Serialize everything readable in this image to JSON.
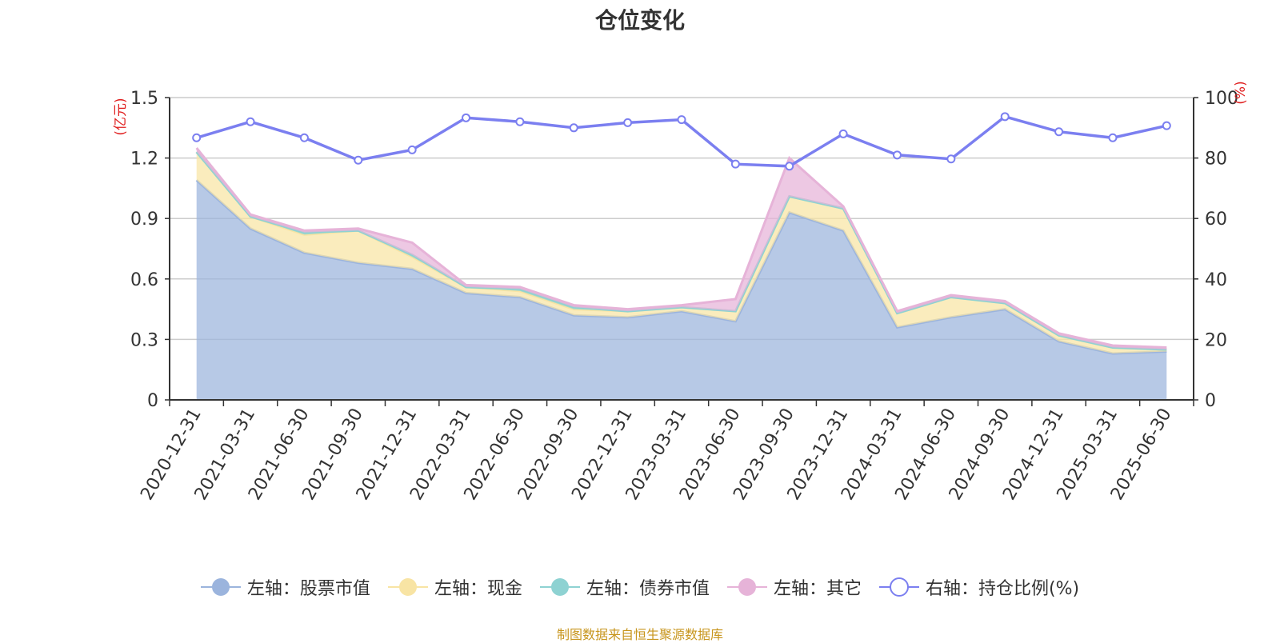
{
  "chart_data": {
    "type": "area",
    "title": "仓位变化",
    "categories": [
      "2020-12-31",
      "2021-03-31",
      "2021-06-30",
      "2021-09-30",
      "2021-12-31",
      "2022-03-31",
      "2022-06-30",
      "2022-09-30",
      "2022-12-31",
      "2023-03-31",
      "2023-06-30",
      "2023-09-30",
      "2023-12-31",
      "2024-03-31",
      "2024-06-30",
      "2024-09-30",
      "2024-12-31",
      "2025-03-31",
      "2025-06-30"
    ],
    "y_left": {
      "label": "(亿元)",
      "ylim": [
        0,
        1.5
      ],
      "ticks": [
        "0",
        "0.3",
        "0.6",
        "0.9",
        "1.2",
        "1.5"
      ],
      "tick_values": [
        0,
        0.3,
        0.6,
        0.9,
        1.2,
        1.5
      ]
    },
    "y_right": {
      "label": "(%)",
      "ylim": [
        0,
        100
      ],
      "ticks": [
        "0",
        "20",
        "40",
        "60",
        "80",
        "100"
      ],
      "tick_values": [
        0,
        20,
        40,
        60,
        80,
        100
      ]
    },
    "grid": true,
    "legend_position": "bottom",
    "stacked": true,
    "series": [
      {
        "name": "左轴：股票市值",
        "axis": "left",
        "kind": "area",
        "color": "#9bb4dd",
        "values": [
          1.09,
          0.85,
          0.73,
          0.68,
          0.65,
          0.53,
          0.51,
          0.42,
          0.41,
          0.44,
          0.39,
          0.93,
          0.84,
          0.36,
          0.41,
          0.45,
          0.29,
          0.23,
          0.24
        ]
      },
      {
        "name": "左轴：现金",
        "axis": "left",
        "kind": "area",
        "color": "#f8e4a4",
        "values": [
          0.14,
          0.06,
          0.09,
          0.16,
          0.06,
          0.03,
          0.03,
          0.03,
          0.03,
          0.02,
          0.05,
          0.08,
          0.11,
          0.07,
          0.1,
          0.03,
          0.03,
          0.03,
          0.01
        ]
      },
      {
        "name": "左轴：债券市值",
        "axis": "left",
        "kind": "area",
        "color": "#8ed2d2",
        "values": [
          0,
          0,
          0.01,
          0,
          0.01,
          0,
          0.01,
          0.01,
          0,
          0,
          0,
          0,
          0,
          0,
          0,
          0,
          0,
          0,
          0
        ]
      },
      {
        "name": "左轴：其它",
        "axis": "left",
        "kind": "area",
        "color": "#e6b3d8",
        "values": [
          0.02,
          0.01,
          0.01,
          0.01,
          0.06,
          0.01,
          0.01,
          0.01,
          0.01,
          0.01,
          0.06,
          0.19,
          0.01,
          0.01,
          0.01,
          0.01,
          0.01,
          0.01,
          0.01
        ]
      },
      {
        "name": "右轴：持仓比例(%)",
        "axis": "right",
        "kind": "line",
        "color": "#7b7ff0",
        "values": [
          86.7,
          92.0,
          86.7,
          79.3,
          82.7,
          93.3,
          92.0,
          90.0,
          91.7,
          92.7,
          78.0,
          77.3,
          88.0,
          81.0,
          79.7,
          93.7,
          88.7,
          86.7,
          90.7
        ]
      }
    ]
  },
  "source_note": "制图数据来自恒生聚源数据库"
}
